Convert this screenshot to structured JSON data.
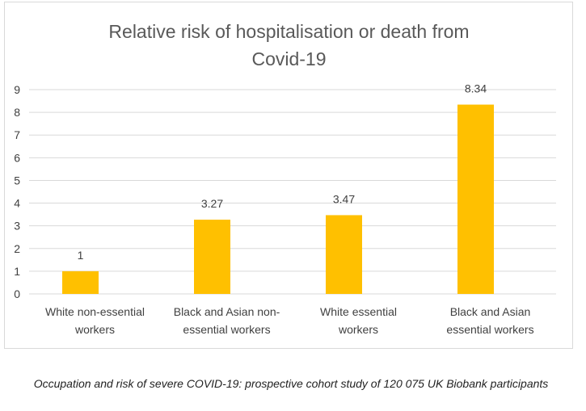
{
  "chart_data": {
    "type": "bar",
    "title": "Relative risk of hospitalisation or death from Covid-19",
    "title_lines": [
      "Relative risk of hospitalisation or death from",
      "Covid-19"
    ],
    "categories": [
      "White non-essential workers",
      "Black and Asian non-essential workers",
      "White essential workers",
      "Black and Asian essential workers"
    ],
    "category_lines": [
      [
        "White non-essential",
        "workers"
      ],
      [
        "Black and Asian non-",
        "essential workers"
      ],
      [
        "White essential",
        "workers"
      ],
      [
        "Black and Asian",
        "essential workers"
      ]
    ],
    "values": [
      1,
      3.27,
      3.47,
      8.34
    ],
    "value_labels": [
      "1",
      "3.27",
      "3.47",
      "8.34"
    ],
    "ylim": [
      0,
      9
    ],
    "yticks": [
      0,
      1,
      2,
      3,
      4,
      5,
      6,
      7,
      8,
      9
    ],
    "xlabel": "",
    "ylabel": "",
    "grid": true,
    "legend": "none",
    "bar_color": "#ffc000",
    "grid_color": "#d9d9d9",
    "text_color": "#404040",
    "title_color": "#595959"
  },
  "caption": "Occupation and risk of severe COVID-19: prospective cohort study of 120 075 UK Biobank participants"
}
